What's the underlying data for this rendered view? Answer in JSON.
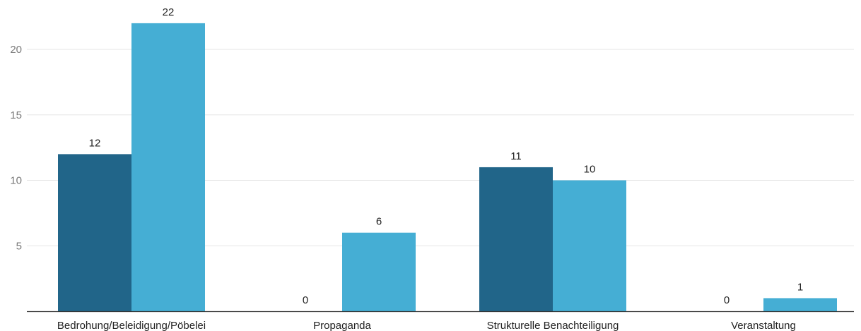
{
  "chart_data": {
    "type": "bar",
    "categories": [
      "Bedrohung/Beleidigung/Pöbelei",
      "Propaganda",
      "Strukturelle Benachteiligung",
      "Veranstaltung"
    ],
    "series": [
      {
        "values": [
          12,
          0,
          11,
          0
        ],
        "color": "#216589"
      },
      {
        "values": [
          22,
          6,
          10,
          1
        ],
        "color": "#45aed4"
      }
    ],
    "y_ticks": [
      5,
      10,
      15,
      20
    ],
    "ylim": [
      0,
      23.5
    ],
    "grid": true,
    "data_labels": true,
    "title": "",
    "xlabel": "",
    "ylabel": ""
  }
}
